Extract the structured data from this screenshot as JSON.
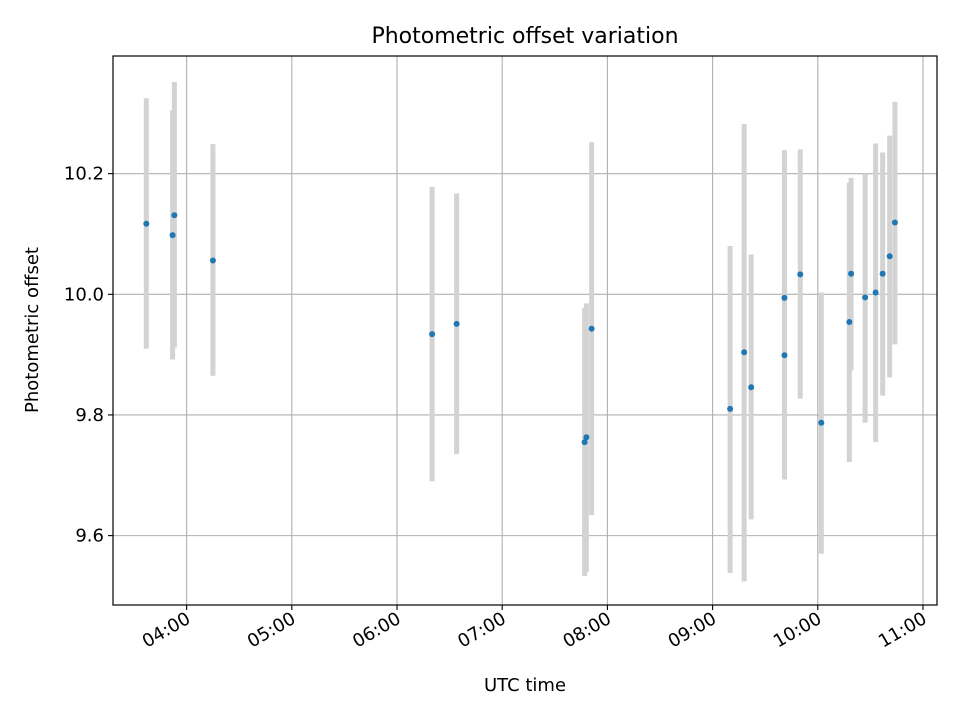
{
  "chart_data": {
    "type": "scatter",
    "title": "Photometric offset variation",
    "xlabel": "UTC time",
    "ylabel": "Photometric offset",
    "x_ticks": [
      "04:00",
      "05:00",
      "06:00",
      "07:00",
      "08:00",
      "09:00",
      "10:00",
      "11:00"
    ],
    "y_ticks": [
      "9.6",
      "9.8",
      "10.0",
      "10.2"
    ],
    "xlim": [
      "03:18",
      "11:08"
    ],
    "ylim": [
      9.485,
      10.395
    ],
    "grid": true,
    "series": [
      {
        "marker_color": "#1f77b4",
        "errorbar_color": "#d3d3d3",
        "points": [
          {
            "x": "03:37",
            "y": 10.117,
            "ylow": 9.91,
            "yhigh": 10.325
          },
          {
            "x": "03:52",
            "y": 10.098,
            "ylow": 9.892,
            "yhigh": 10.305
          },
          {
            "x": "03:53",
            "y": 10.131,
            "ylow": 9.912,
            "yhigh": 10.352
          },
          {
            "x": "04:15",
            "y": 10.056,
            "ylow": 9.865,
            "yhigh": 10.249
          },
          {
            "x": "06:20",
            "y": 9.934,
            "ylow": 9.69,
            "yhigh": 10.178
          },
          {
            "x": "06:34",
            "y": 9.951,
            "ylow": 9.735,
            "yhigh": 10.167
          },
          {
            "x": "07:47",
            "y": 9.755,
            "ylow": 9.533,
            "yhigh": 9.977
          },
          {
            "x": "07:48",
            "y": 9.763,
            "ylow": 9.54,
            "yhigh": 9.985
          },
          {
            "x": "07:51",
            "y": 9.943,
            "ylow": 9.634,
            "yhigh": 10.252
          },
          {
            "x": "09:10",
            "y": 9.81,
            "ylow": 9.538,
            "yhigh": 10.08
          },
          {
            "x": "09:18",
            "y": 9.904,
            "ylow": 9.524,
            "yhigh": 10.282
          },
          {
            "x": "09:22",
            "y": 9.846,
            "ylow": 9.627,
            "yhigh": 10.066
          },
          {
            "x": "09:41",
            "y": 9.994,
            "ylow": 9.749,
            "yhigh": 10.239
          },
          {
            "x": "09:41",
            "y": 9.899,
            "ylow": 9.693,
            "yhigh": 10.103
          },
          {
            "x": "09:50",
            "y": 10.033,
            "ylow": 9.827,
            "yhigh": 10.24
          },
          {
            "x": "10:02",
            "y": 9.787,
            "ylow": 9.57,
            "yhigh": 10.003
          },
          {
            "x": "10:18",
            "y": 9.954,
            "ylow": 9.722,
            "yhigh": 10.185
          },
          {
            "x": "10:19",
            "y": 10.034,
            "ylow": 9.874,
            "yhigh": 10.193
          },
          {
            "x": "10:27",
            "y": 9.995,
            "ylow": 9.787,
            "yhigh": 10.2
          },
          {
            "x": "10:33",
            "y": 10.003,
            "ylow": 9.755,
            "yhigh": 10.25
          },
          {
            "x": "10:37",
            "y": 10.034,
            "ylow": 9.832,
            "yhigh": 10.235
          },
          {
            "x": "10:41",
            "y": 10.063,
            "ylow": 9.862,
            "yhigh": 10.263
          },
          {
            "x": "10:44",
            "y": 10.119,
            "ylow": 9.917,
            "yhigh": 10.319
          }
        ]
      }
    ]
  }
}
